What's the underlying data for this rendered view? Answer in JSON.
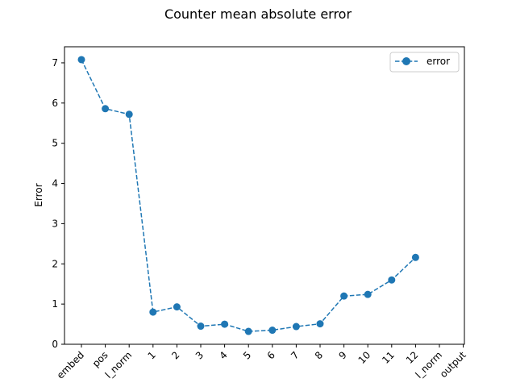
{
  "chart_data": {
    "type": "line",
    "title": "Counter mean absolute error",
    "xlabel": "",
    "ylabel": "Error",
    "categories": [
      "embed",
      "pos",
      "l_norm",
      "1",
      "2",
      "3",
      "4",
      "5",
      "6",
      "7",
      "8",
      "9",
      "10",
      "11",
      "12",
      "l_norm",
      "output"
    ],
    "series": [
      {
        "name": "error",
        "values": [
          7.08,
          5.86,
          5.72,
          0.8,
          0.93,
          0.45,
          0.5,
          0.32,
          0.35,
          0.44,
          0.51,
          1.2,
          1.24,
          1.6,
          2.16,
          null,
          null
        ],
        "color": "#1f77b4",
        "line_style": "dashed",
        "marker": "circle"
      }
    ],
    "ylim": [
      0,
      7.4
    ],
    "yticks": [
      0,
      1,
      2,
      3,
      4,
      5,
      6,
      7
    ],
    "grid": false,
    "legend_position": "top-right",
    "xtick_rotation": 45
  }
}
